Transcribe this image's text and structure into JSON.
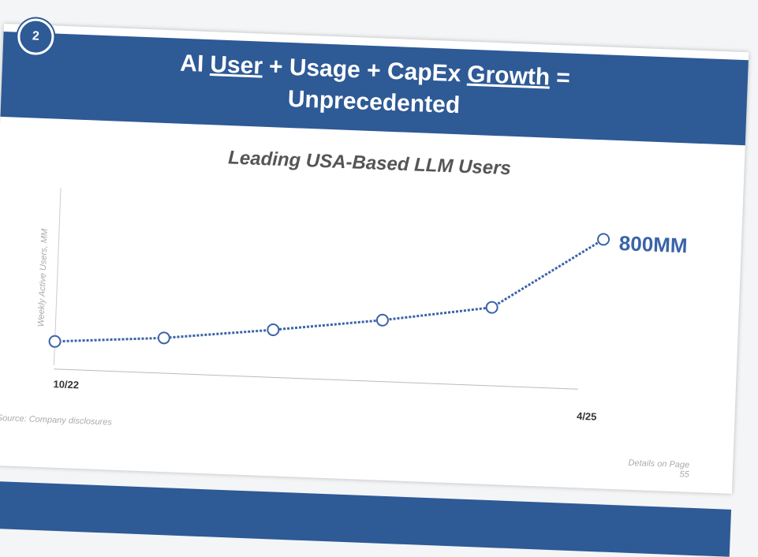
{
  "badge": "2",
  "header": {
    "title_line1": [
      "AI",
      "User",
      "+ Usage + CapEx",
      "Growth",
      "="
    ],
    "title_line2": "Unprecedented"
  },
  "chart_data": {
    "type": "line",
    "title": "Leading USA-Based LLM Users",
    "y_label": "Weekly Active Users, MM",
    "categories": [
      "10/22",
      null,
      null,
      null,
      null,
      "4/25"
    ],
    "series": [
      {
        "name": "Weekly Active Users",
        "color": "#3a63a8",
        "values": [
          0,
          50,
          130,
          220,
          330,
          800
        ]
      }
    ],
    "value_labels": [
      null,
      null,
      null,
      null,
      null,
      "800MM"
    ],
    "ylim": [
      0,
      1000
    ]
  },
  "source": "Source: Company disclosures",
  "details": "Details on Page 55"
}
